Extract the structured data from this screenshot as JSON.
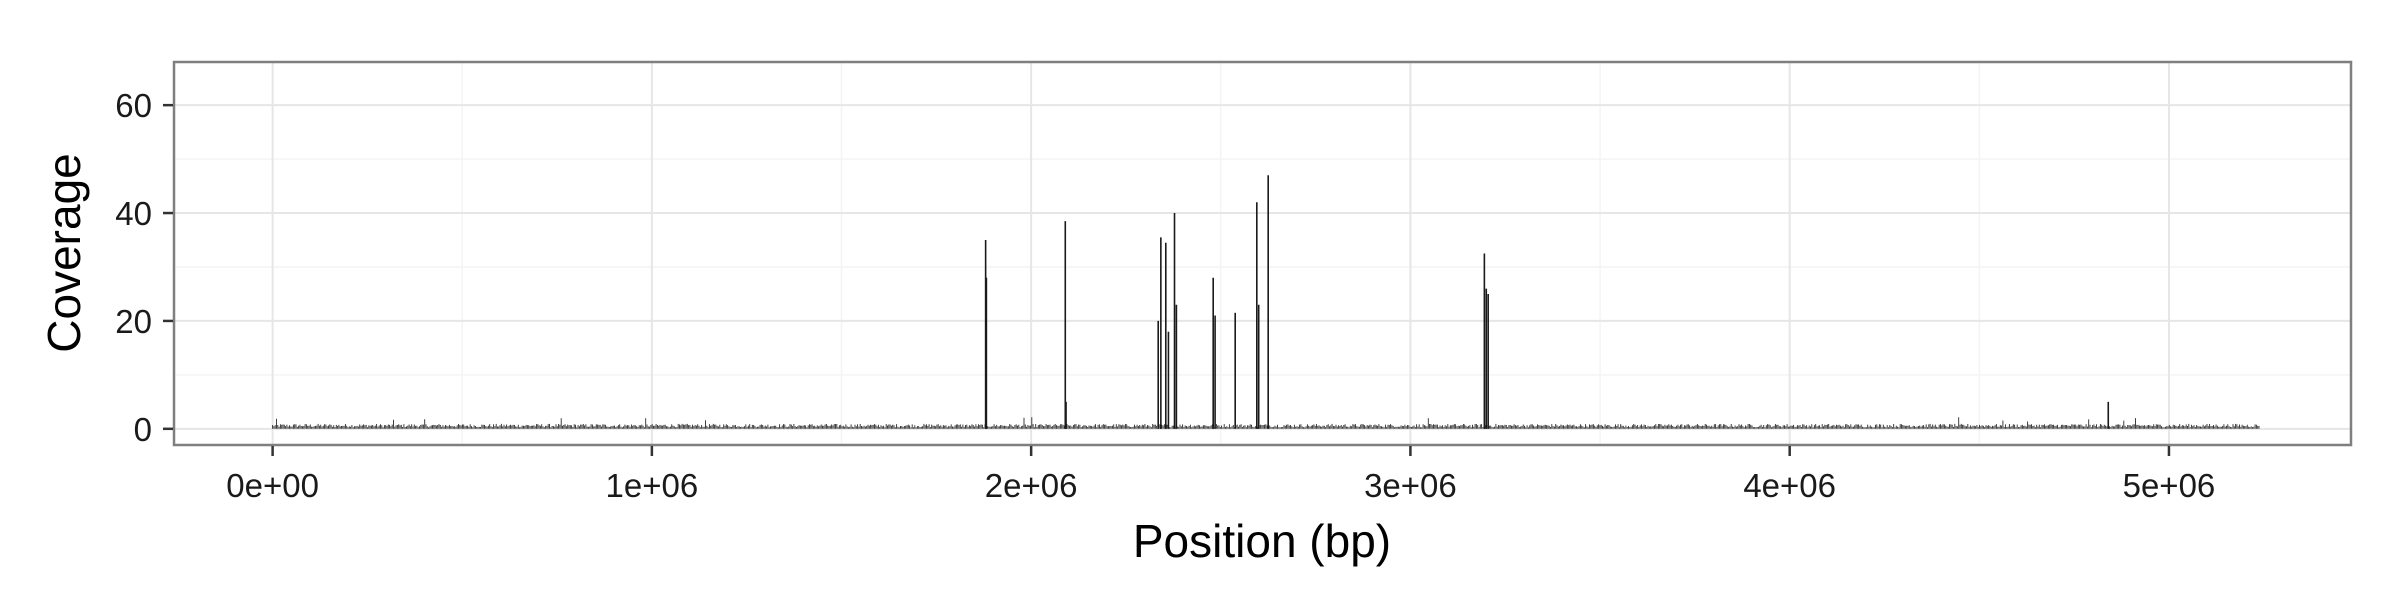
{
  "chart_data": {
    "type": "line",
    "title": "",
    "xlabel": "Position (bp)",
    "ylabel": "Coverage",
    "xlim": [
      -260000,
      5480000
    ],
    "ylim": [
      -3,
      68
    ],
    "x_ticks": [
      0,
      1000000,
      2000000,
      3000000,
      4000000,
      5000000
    ],
    "x_tick_labels": [
      "0e+00",
      "1e+06",
      "2e+06",
      "3e+06",
      "4e+06",
      "5e+06"
    ],
    "y_ticks": [
      0,
      20,
      40,
      60
    ],
    "y_tick_labels": [
      "0",
      "20",
      "40",
      "60"
    ],
    "grid": true,
    "baseline": {
      "x_start": 0,
      "x_end": 5240000,
      "approx_coverage": 0.8
    },
    "series": [
      {
        "x": [
          1880000,
          1882000,
          2090000,
          2092000,
          2335000,
          2342000,
          2355000,
          2362000,
          2378000,
          2383000,
          2480000,
          2485000,
          2538000,
          2595000,
          2600000,
          2625000,
          3195000,
          3200000,
          3205000,
          4840000
        ],
        "y": [
          35,
          28,
          38.5,
          5,
          20,
          35.5,
          34.5,
          18,
          40,
          23,
          28,
          21,
          21.5,
          42,
          23,
          47,
          32.5,
          26,
          25,
          5
        ]
      }
    ]
  }
}
